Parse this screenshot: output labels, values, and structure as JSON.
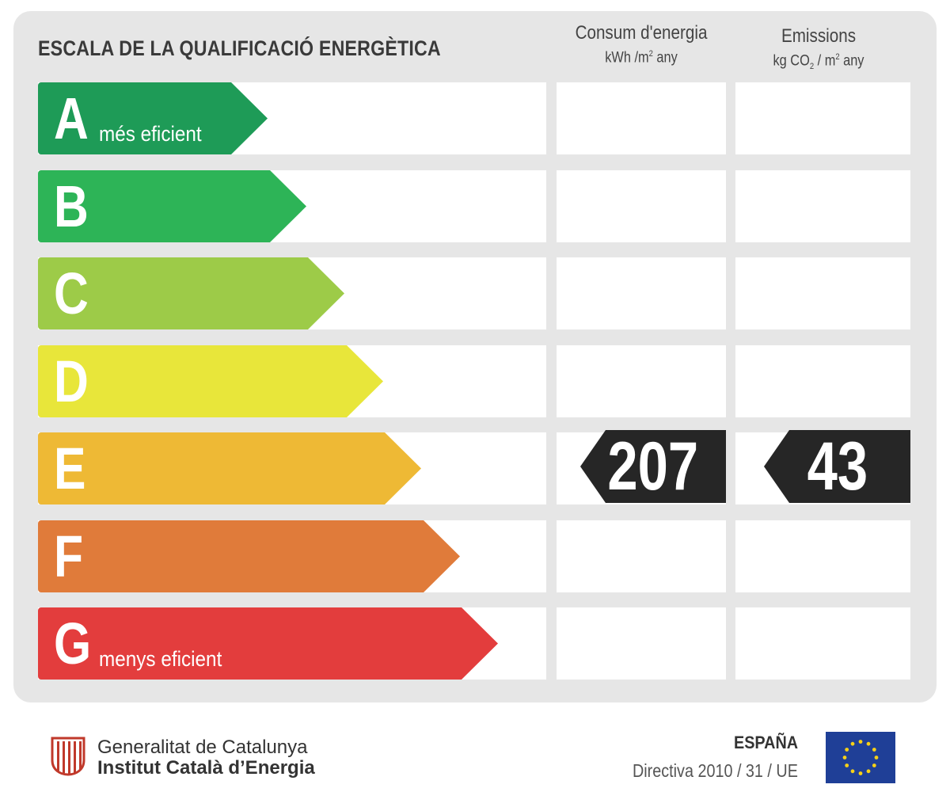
{
  "title": "ESCALA DE LA QUALIFICACIÓ ENERGÈTICA",
  "columns": {
    "energy": {
      "label": "Consum d'energia",
      "unit_a": "kWh /m",
      "unit_sup": "2",
      "unit_b": " any"
    },
    "emissions": {
      "label": "Emissions",
      "unit_a": "kg CO",
      "unit_sub": "2",
      "unit_b": " / m",
      "unit_sup": "2",
      "unit_c": " any"
    }
  },
  "ratings": [
    {
      "letter": "A",
      "desc": "més eficient",
      "color": "#1e9b57"
    },
    {
      "letter": "B",
      "desc": "",
      "color": "#2db457"
    },
    {
      "letter": "C",
      "desc": "",
      "color": "#9dcb48"
    },
    {
      "letter": "D",
      "desc": "",
      "color": "#e8e63a"
    },
    {
      "letter": "E",
      "desc": "",
      "color": "#eeb935"
    },
    {
      "letter": "F",
      "desc": "",
      "color": "#e07b3a"
    },
    {
      "letter": "G",
      "desc": "menys eficient",
      "color": "#e33d3d"
    }
  ],
  "current_rating": "E",
  "energy_value": "207",
  "emissions_value": "43",
  "footer": {
    "org_line1": "Generalitat de Catalunya",
    "org_line2": "Institut Català d’Energia",
    "country": "ESPAÑA",
    "directive": "Directiva 2010 / 31 / UE"
  },
  "colors": {
    "badge": "#262626",
    "panel": "#e6e6e6",
    "eu_blue": "#1f3f97",
    "eu_star": "#f7d117"
  }
}
